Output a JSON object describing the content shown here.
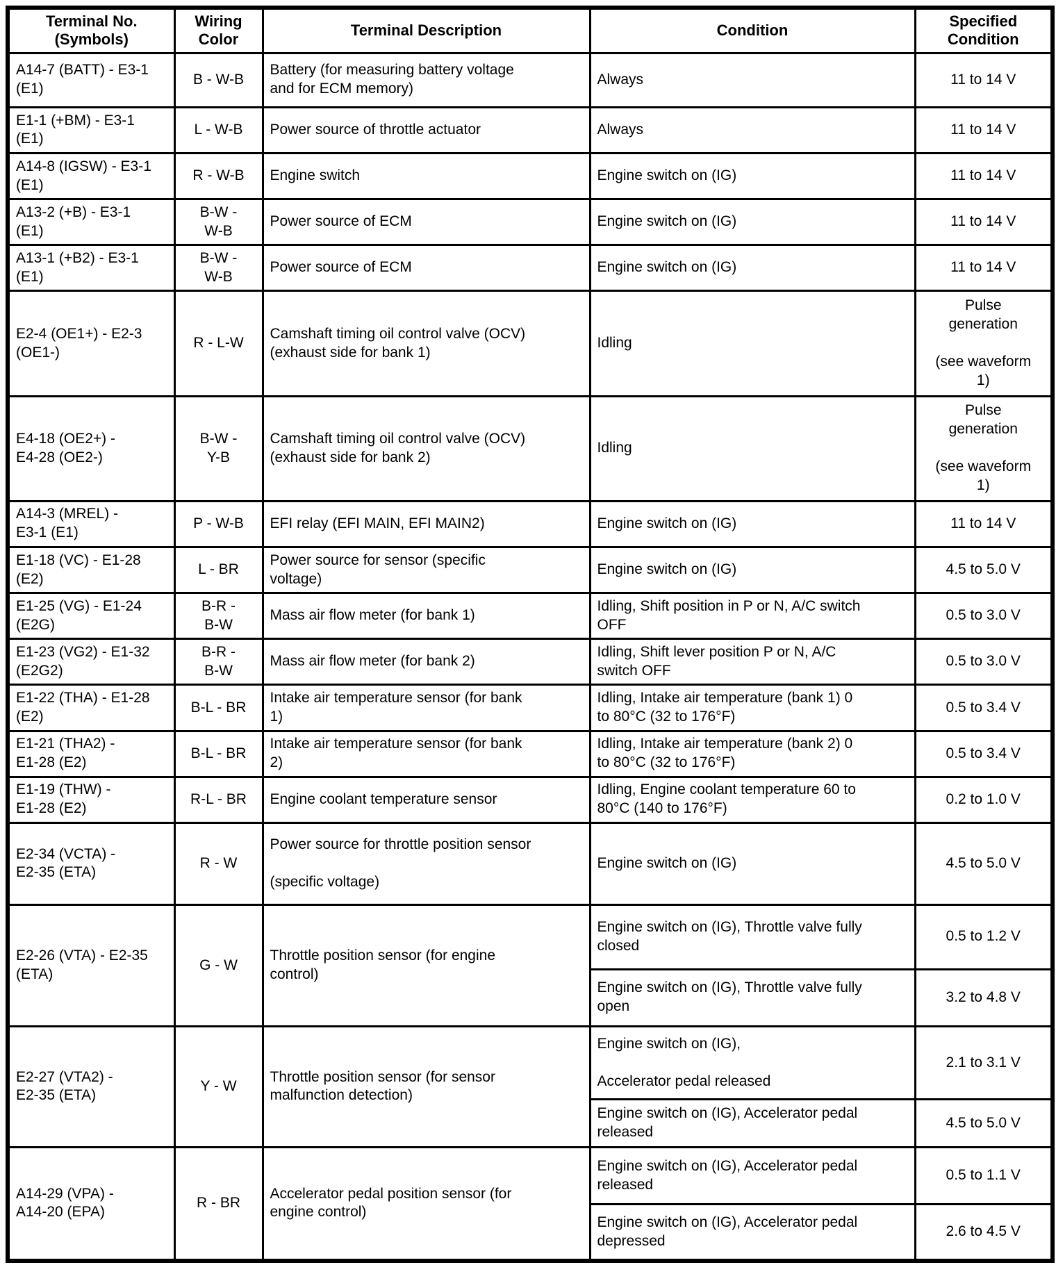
{
  "page": {
    "background_color": "#ffffff",
    "border_color": "#000000",
    "text_color": "#000000"
  },
  "table": {
    "headers": [
      {
        "label": "Terminal No.\n(Symbols)"
      },
      {
        "label": "Wiring\nColor"
      },
      {
        "label": "Terminal Description"
      },
      {
        "label": "Condition"
      },
      {
        "label": "Specified\nCondition"
      }
    ],
    "rows": [
      {
        "terminal": "A14-7 (BATT) - E3-1\n(E1)",
        "wiring": "B - W-B",
        "description": "Battery (for measuring battery voltage\nand for ECM memory)",
        "entries": [
          {
            "condition": "Always",
            "specified": "11 to 14 V"
          }
        ]
      },
      {
        "terminal": "E1-1 (+BM) - E3-1\n(E1)",
        "wiring": "L - W-B",
        "description": "Power source of throttle actuator",
        "entries": [
          {
            "condition": "Always",
            "specified": "11 to 14 V"
          }
        ]
      },
      {
        "terminal": "A14-8 (IGSW) - E3-1\n(E1)",
        "wiring": "R - W-B",
        "description": "Engine switch",
        "entries": [
          {
            "condition": "Engine switch on (IG)",
            "specified": "11 to 14 V"
          }
        ]
      },
      {
        "terminal": "A13-2 (+B) - E3-1\n(E1)",
        "wiring": "B-W -\nW-B",
        "description": "Power source of ECM",
        "entries": [
          {
            "condition": "Engine switch on (IG)",
            "specified": "11 to 14 V"
          }
        ]
      },
      {
        "terminal": "A13-1 (+B2) - E3-1\n(E1)",
        "wiring": "B-W -\nW-B",
        "description": "Power source of ECM",
        "entries": [
          {
            "condition": "Engine switch on (IG)",
            "specified": "11 to 14 V"
          }
        ]
      },
      {
        "terminal": "E2-4 (OE1+) - E2-3\n(OE1-)",
        "wiring": "R - L-W",
        "description": "Camshaft timing oil control valve (OCV)\n(exhaust side for bank 1)",
        "entries": [
          {
            "condition": "Idling",
            "specified": "Pulse\ngeneration\n\n(see waveform\n1)"
          }
        ]
      },
      {
        "terminal": "E4-18 (OE2+) -\nE4-28 (OE2-)",
        "wiring": "B-W -\nY-B",
        "description": "Camshaft timing oil control valve (OCV)\n(exhaust side for bank 2)",
        "entries": [
          {
            "condition": "Idling",
            "specified": "Pulse\ngeneration\n\n(see waveform\n1)"
          }
        ]
      },
      {
        "terminal": "A14-3 (MREL) -\nE3-1 (E1)",
        "wiring": "P - W-B",
        "description": "EFI relay (EFI MAIN, EFI MAIN2)",
        "entries": [
          {
            "condition": "Engine switch on (IG)",
            "specified": "11 to 14 V"
          }
        ]
      },
      {
        "terminal": "E1-18 (VC) - E1-28\n(E2)",
        "wiring": "L - BR",
        "description": "Power source for sensor (specific\nvoltage)",
        "entries": [
          {
            "condition": "Engine switch on (IG)",
            "specified": "4.5 to 5.0 V"
          }
        ]
      },
      {
        "terminal": "E1-25 (VG) - E1-24\n(E2G)",
        "wiring": "B-R -\nB-W",
        "description": "Mass air flow meter (for bank 1)",
        "entries": [
          {
            "condition": "Idling, Shift position in P or N, A/C switch\nOFF",
            "specified": "0.5 to 3.0 V"
          }
        ]
      },
      {
        "terminal": "E1-23 (VG2) - E1-32\n(E2G2)",
        "wiring": "B-R -\nB-W",
        "description": "Mass air flow meter (for bank 2)",
        "entries": [
          {
            "condition": "Idling, Shift lever position P or N, A/C\nswitch OFF",
            "specified": "0.5 to 3.0 V"
          }
        ]
      },
      {
        "terminal": "E1-22 (THA) - E1-28\n(E2)",
        "wiring": "B-L - BR",
        "description": "Intake air temperature sensor (for bank\n1)",
        "entries": [
          {
            "condition": "Idling, Intake air temperature (bank 1) 0\nto 80°C (32 to 176°F)",
            "specified": "0.5 to 3.4 V"
          }
        ]
      },
      {
        "terminal": "E1-21 (THA2) -\nE1-28 (E2)",
        "wiring": "B-L - BR",
        "description": "Intake air temperature sensor (for bank\n2)",
        "entries": [
          {
            "condition": "Idling, Intake air temperature (bank 2) 0\nto 80°C (32 to 176°F)",
            "specified": "0.5 to 3.4 V"
          }
        ]
      },
      {
        "terminal": "E1-19 (THW) -\nE1-28 (E2)",
        "wiring": "R-L - BR",
        "description": "Engine coolant temperature sensor",
        "entries": [
          {
            "condition": "Idling, Engine coolant temperature 60 to\n80°C (140 to 176°F)",
            "specified": "0.2 to 1.0 V"
          }
        ]
      },
      {
        "terminal": "E2-34 (VCTA) -\nE2-35 (ETA)",
        "wiring": "R - W",
        "description": "Power source for throttle position sensor\n\n(specific voltage)",
        "entries": [
          {
            "condition": "Engine switch on (IG)",
            "specified": "4.5 to 5.0 V"
          }
        ]
      },
      {
        "terminal": "E2-26 (VTA) - E2-35\n(ETA)",
        "wiring": "G - W",
        "description": "Throttle position sensor (for engine\ncontrol)",
        "entries": [
          {
            "condition": "Engine switch on (IG), Throttle valve fully\nclosed",
            "specified": "0.5 to 1.2 V"
          },
          {
            "condition": "Engine switch on (IG), Throttle valve fully\nopen",
            "specified": "3.2 to 4.8 V"
          }
        ]
      },
      {
        "terminal": "E2-27 (VTA2) -\nE2-35 (ETA)",
        "wiring": "Y - W",
        "description": "Throttle position sensor (for sensor\nmalfunction detection)",
        "entries": [
          {
            "condition": "Engine switch on (IG),\n\nAccelerator pedal released",
            "specified": "2.1 to 3.1 V"
          },
          {
            "condition": "Engine switch on (IG), Accelerator pedal\nreleased",
            "specified": "4.5 to 5.0 V"
          }
        ]
      },
      {
        "terminal": "A14-29 (VPA) -\nA14-20 (EPA)",
        "wiring": "R - BR",
        "description": "Accelerator pedal position sensor (for\nengine control)",
        "entries": [
          {
            "condition": "Engine switch on (IG), Accelerator pedal\nreleased",
            "specified": "0.5 to 1.1 V"
          },
          {
            "condition": "Engine switch on (IG), Accelerator pedal\ndepressed",
            "specified": "2.6 to 4.5 V"
          }
        ]
      }
    ]
  }
}
